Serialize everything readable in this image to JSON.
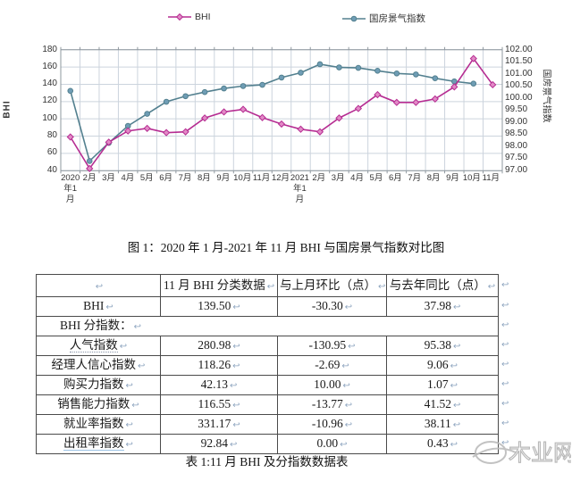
{
  "chart": {
    "legend": [
      {
        "label": "BHI",
        "color": "#b62d92",
        "marker_fill": "#e28ac6",
        "marker": "diamond"
      },
      {
        "label": "国房景气指数",
        "color": "#53808f",
        "marker_fill": "#6f9db5",
        "marker": "circle"
      }
    ],
    "left_axis": {
      "title": "BHI",
      "ticks": [
        "180",
        "160",
        "140",
        "120",
        "100",
        "80",
        "60",
        "40"
      ]
    },
    "right_axis": {
      "title": "国房景气指数",
      "ticks": [
        "102.00",
        "101.50",
        "101.00",
        "100.50",
        "100.00",
        "99.50",
        "99.00",
        "98.50",
        "98.00",
        "97.50",
        "97.00"
      ]
    },
    "caption": "图 1：2020 年 1 月-2021 年 11 月 BHI 与国房景气指数对比图"
  },
  "chart_data": {
    "type": "line",
    "title": "",
    "categories": [
      "2020年1月",
      "2月",
      "3月",
      "4月",
      "5月",
      "6月",
      "7月",
      "8月",
      "9月",
      "10月",
      "11月",
      "12月",
      "2021年1月",
      "2月",
      "3月",
      "4月",
      "5月",
      "6月",
      "7月",
      "8月",
      "9月",
      "10月",
      "11月"
    ],
    "series": [
      {
        "name": "BHI",
        "axis": "left",
        "marker": "diamond",
        "values": [
          79,
          42.5,
          73,
          86,
          89,
          84,
          85,
          101,
          108,
          111,
          101.5,
          94,
          88,
          85,
          101,
          112,
          128,
          119,
          119,
          123,
          137,
          169.8,
          139.5
        ]
      },
      {
        "name": "国房景气指数",
        "axis": "right",
        "marker": "circle",
        "values": [
          100.3,
          97.4,
          98.15,
          98.85,
          99.35,
          99.85,
          100.08,
          100.25,
          100.4,
          100.5,
          100.55,
          100.85,
          101.05,
          101.4,
          101.27,
          101.25,
          101.13,
          101.02,
          100.98,
          100.82,
          100.69,
          100.6,
          null
        ]
      }
    ],
    "left_ylim": [
      40,
      180
    ],
    "left_step": 20,
    "right_ylim": [
      97,
      102
    ],
    "right_step": 0.5,
    "grid": true,
    "legend_position": "top"
  },
  "table": {
    "headers": [
      "",
      "11 月 BHI 分类数据",
      "与上月环比（点）",
      "与去年同比（点）"
    ],
    "rows": [
      {
        "label": "BHI",
        "values": [
          "139.50",
          "-30.30",
          "37.98"
        ]
      },
      {
        "label": "BHI 分指数：",
        "span": true
      },
      {
        "label": "人气指数",
        "values": [
          "280.98",
          "-130.95",
          "95.38"
        ],
        "underline": "gray"
      },
      {
        "label": "经理人信心指数",
        "values": [
          "118.26",
          "-2.69",
          "9.06"
        ]
      },
      {
        "label": "购买力指数",
        "values": [
          "42.13",
          "10.00",
          "1.07"
        ]
      },
      {
        "label": "销售能力指数",
        "values": [
          "116.55",
          "-13.77",
          "41.52"
        ]
      },
      {
        "label": "就业率指数",
        "values": [
          "331.17",
          "-10.96",
          "38.11"
        ]
      },
      {
        "label": "出租率指数",
        "values": [
          "92.84",
          "0.00",
          "0.43"
        ],
        "underline": "blue"
      }
    ],
    "caption": "表 1:11 月 BHI 及分指数数据表",
    "return_mark": "↩"
  },
  "watermark": {
    "text": "木业网"
  }
}
